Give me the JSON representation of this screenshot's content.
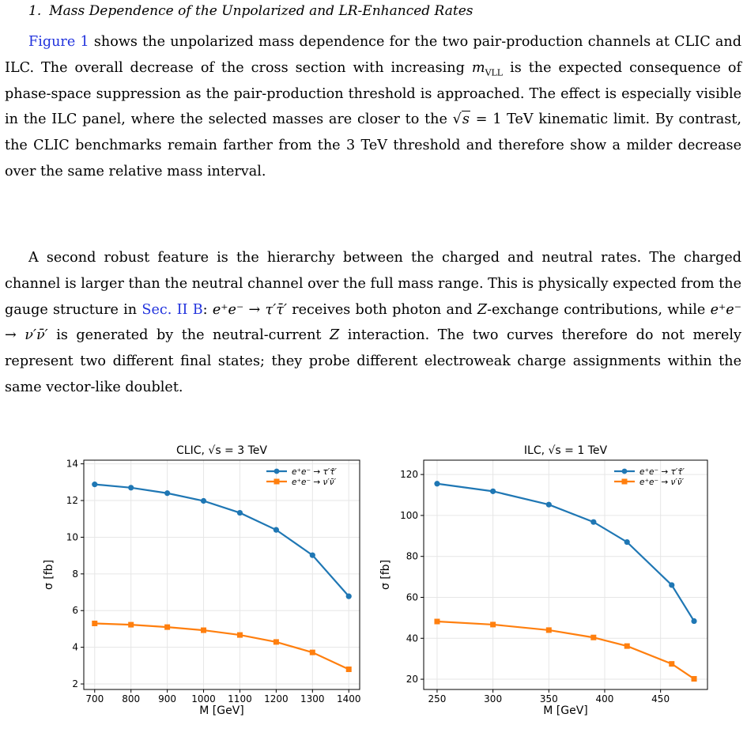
{
  "section": {
    "number": "1.",
    "title": "Mass Dependence of the Unpolarized and LR-Enhanced Rates"
  },
  "paragraph1": {
    "fig_ref": "Figure 1",
    "text_a": " shows the unpolarized mass dependence for the two pair-production channels at CLIC and ILC. The overall decrease of the cross section with increasing ",
    "math_m": "m",
    "math_m_sub": "VLL",
    "text_b": " is the expected consequence of phase-space suppression as the pair-production threshold is approached. The effect is especially visible in the ILC panel, where the selected masses are closer to the ",
    "sqrt_arg": "s",
    "text_c": " = 1 TeV kinematic limit. By contrast, the CLIC benchmarks remain farther from the 3 TeV threshold and therefore show a milder decrease over the same relative mass interval."
  },
  "paragraph2": {
    "text_a": "A second robust feature is the hierarchy between the charged and neutral rates. The charged channel is larger than the neutral channel over the full mass range. This is physically expected from the gauge structure in ",
    "sec_ref": "Sec. II B",
    "text_b": ": ",
    "proc_charged": "e⁺e⁻ → τ′τ̄′",
    "text_c": " receives both photon and ",
    "z_letter": "Z",
    "text_d": "-exchange contributions, while ",
    "proc_neutral": "e⁺e⁻ → ν′ν̄′",
    "text_e": " is generated by the neutral-current ",
    "z_letter2": "Z",
    "text_f": " interaction. The two curves therefore do not merely represent two different final states; they probe different electroweak charge assignments within the same vector-like doublet."
  },
  "colors": {
    "charged": "#1f77b4",
    "neutral": "#ff7f0e",
    "grid": "#e6e6e6"
  },
  "chart_data": [
    {
      "type": "line",
      "title": "CLIC, √s = 3 TeV",
      "xlabel": "M [GeV]",
      "ylabel": "σ [fb]",
      "x": [
        700,
        800,
        900,
        1000,
        1100,
        1200,
        1300,
        1400
      ],
      "xlim": [
        670,
        1430
      ],
      "ylim": [
        1.7,
        14.2
      ],
      "xticks": [
        700,
        800,
        900,
        1000,
        1100,
        1200,
        1300,
        1400
      ],
      "yticks": [
        2,
        4,
        6,
        8,
        10,
        12,
        14
      ],
      "grid": true,
      "legend_position": "top-right",
      "series": [
        {
          "name": "e⁺e⁻ → τ′τ̄′",
          "marker": "circle",
          "values": [
            12.88,
            12.7,
            12.4,
            11.98,
            11.33,
            10.4,
            9.02,
            6.78
          ]
        },
        {
          "name": "e⁺e⁻ → ν′ν̄′",
          "marker": "square",
          "values": [
            5.3,
            5.23,
            5.1,
            4.93,
            4.67,
            4.29,
            3.72,
            2.8
          ]
        }
      ]
    },
    {
      "type": "line",
      "title": "ILC, √s = 1 TeV",
      "xlabel": "M [GeV]",
      "ylabel": "σ [fb]",
      "x": [
        250,
        300,
        350,
        390,
        420,
        460,
        480
      ],
      "xlim": [
        238,
        492
      ],
      "ylim": [
        15,
        127
      ],
      "xticks": [
        250,
        300,
        350,
        400,
        450
      ],
      "yticks": [
        20,
        40,
        60,
        80,
        100,
        120
      ],
      "grid": true,
      "legend_position": "top-right",
      "series": [
        {
          "name": "e⁺e⁻ → τ′τ̄′",
          "marker": "circle",
          "values": [
            115.5,
            111.8,
            105.3,
            96.8,
            87.0,
            66.0,
            48.4
          ]
        },
        {
          "name": "e⁺e⁻ → ν′ν̄′",
          "marker": "square",
          "values": [
            48.2,
            46.7,
            44.0,
            40.4,
            36.2,
            27.5,
            20.2
          ]
        }
      ]
    }
  ]
}
